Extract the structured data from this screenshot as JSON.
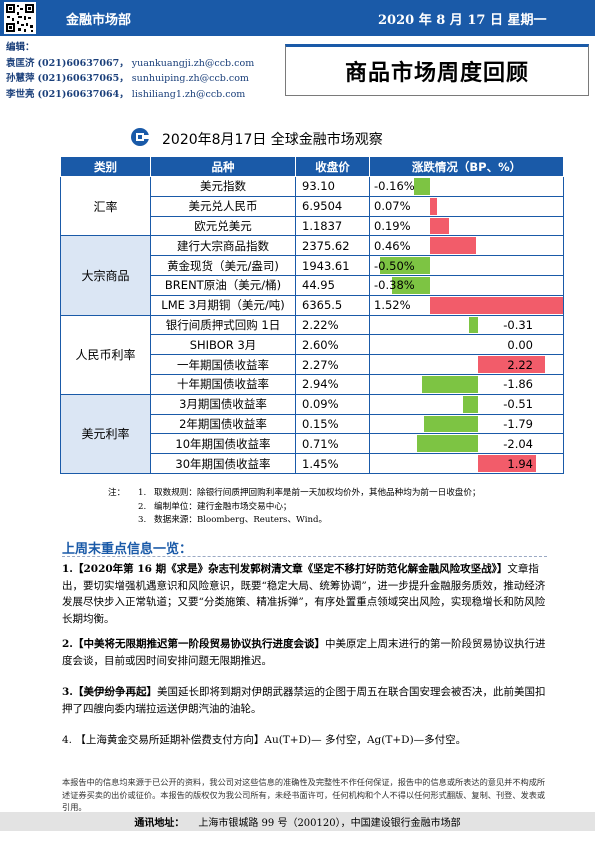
{
  "header": {
    "department": "金融市场部",
    "date": "2020 年 8 月 17 日  星期一",
    "editors_label": "编辑：",
    "editors": [
      {
        "name": "袁匡济",
        "phone": "(021)60637067，",
        "email": "yuankuangji.zh@ccb.com"
      },
      {
        "name": "孙慧萍",
        "phone": "(021)60637065，",
        "email": "sunhuiping.zh@ccb.com"
      },
      {
        "name": "李世亮",
        "phone": "(021)60637064，",
        "email": "lishiliang1.zh@ccb.com"
      }
    ],
    "report_title": "商品市场周度回顾"
  },
  "table": {
    "title": "2020年8月17日  全球金融市场观察",
    "columns": [
      "类别",
      "品种",
      "收盘价",
      "涨跌情况（BP、%）"
    ],
    "categories": [
      {
        "label": "汇率",
        "rows": [
          {
            "name": "美元指数",
            "close": "93.10",
            "change": "-0.16%",
            "value": -0.16
          },
          {
            "name": "美元兑人民币",
            "close": "6.9504",
            "change": "0.07%",
            "value": 0.07
          },
          {
            "name": "欧元兑美元",
            "close": "1.1837",
            "change": "0.19%",
            "value": 0.19
          }
        ]
      },
      {
        "label": "大宗商品",
        "rows": [
          {
            "name": "建行大宗商品指数",
            "close": "2375.62",
            "change": "0.46%",
            "value": 0.46
          },
          {
            "name": "黄金现货（美元/盎司)",
            "close": "1943.61",
            "change": "-0.50%",
            "value": -0.5
          },
          {
            "name": "BRENT原油（美元/桶)",
            "close": "44.95",
            "change": "-0.38%",
            "value": -0.38
          },
          {
            "name": "LME 3月期铜（美元/吨)",
            "close": "6365.5",
            "change": "1.52%",
            "value": 1.52
          }
        ]
      },
      {
        "label": "人民币利率",
        "rows": [
          {
            "name": "银行间质押式回购 1日",
            "close": "2.22%",
            "change": "-0.31",
            "value": -0.31
          },
          {
            "name": "SHIBOR 3月",
            "close": "2.60%",
            "change": "0.00",
            "value": 0.0
          },
          {
            "name": "一年期国债收益率",
            "close": "2.27%",
            "change": "2.22",
            "value": 2.22
          },
          {
            "name": "十年期国债收益率",
            "close": "2.94%",
            "change": "-1.86",
            "value": -1.86
          }
        ]
      },
      {
        "label": "美元利率",
        "rows": [
          {
            "name": "3月期国债收益率",
            "close": "0.09%",
            "change": "-0.51",
            "value": -0.51
          },
          {
            "name": "2年期国债收益率",
            "close": "0.15%",
            "change": "-1.79",
            "value": -1.79
          },
          {
            "name": "10年期国债收益率",
            "close": "0.71%",
            "change": "-2.04",
            "value": -2.04
          },
          {
            "name": "30年期国债收益率",
            "close": "1.45%",
            "change": "1.94",
            "value": 1.94
          }
        ]
      }
    ],
    "colors": {
      "header_bg": "#1a5aa8",
      "positive": "#f25c6a",
      "negative": "#7dc443",
      "category_shade": "#dbe6f4"
    }
  },
  "notes": {
    "label": "注：",
    "items": [
      {
        "num": "1.",
        "text": "取数规则：除银行间质押回购利率是前一天加权均价外，其他品种均为前一日收盘价；"
      },
      {
        "num": "2.",
        "text": "编制单位：建行金融市场交易中心；"
      },
      {
        "num": "3.",
        "text": "数据来源：Bloomberg、Reuters、Wind。"
      }
    ]
  },
  "section": {
    "heading": "上周末重点信息一览：",
    "items": [
      {
        "head": "1.【2020年第 16 期《求是》杂志刊发郭树清文章《坚定不移打好防范化解金融风险攻坚战》】",
        "body": "文章指出，要切实增强机遇意识和风险意识，既要“稳定大局、统筹协调”，进一步提升金融服务质效，推动经济发展尽快步入正常轨道；又要“分类施策、精准拆弹”，有序处置重点领域突出风险，实现稳增长和防风险长期均衡。"
      },
      {
        "head": "2.【中美将无限期推迟第一阶段贸易协议执行进度会谈】",
        "body": "中美原定上周末进行的第一阶段贸易协议执行进度会谈，目前或因时间安排问题无限期推迟。"
      },
      {
        "head": "3.【美伊纷争再起】",
        "body": "美国延长即将到期对伊朗武器禁运的企图于周五在联合国安理会被否决，此前美国扣押了四艘向委内瑞拉运送伊朗汽油的油轮。"
      },
      {
        "head": "4.  【上海黄金交易所延期补偿费支付方向】",
        "body": "Au(T+D)—  多付空，Ag(T+D)—多付空。"
      }
    ]
  },
  "disclaimer": "本报告中的信息均来源于已公开的资料，我公司对这些信息的准确性及完整性不作任何保证，报告中的信息或所表达的意见并不构成所述证券买卖的出价或征价。本报告的版权仅为我公司所有，未经书面许可，任何机构和个人不得以任何形式翻版、复制、刊登、发表或引用。",
  "footer": {
    "label": "通讯地址：",
    "text": "上海市银城路 99 号（200120），中国建设银行金融市场部"
  }
}
